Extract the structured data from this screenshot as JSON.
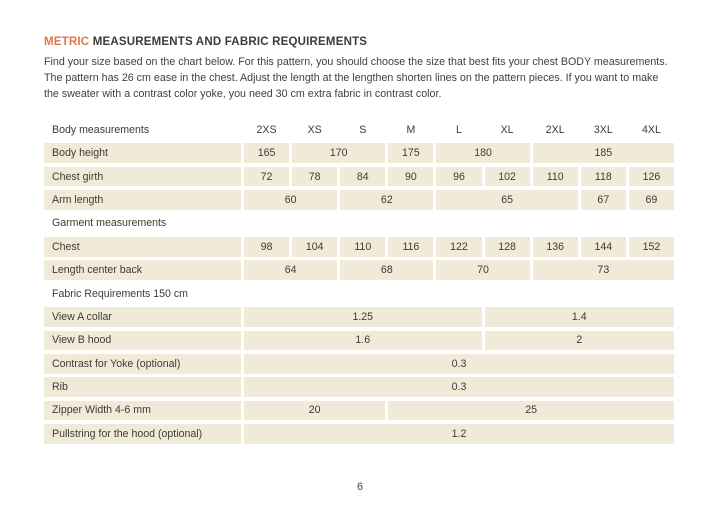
{
  "colors": {
    "accent_orange": "#e0764b",
    "cell_beige": "#f2ead8",
    "text_dark": "#3f3a36",
    "page_background": "#ffffff"
  },
  "header": {
    "title_highlight": "METRIC",
    "title_rest": "MEASUREMENTS AND FABRIC REQUIREMENTS",
    "intro": "Find your size based on the chart below. For this pattern, you should choose the size that best fits your chest BODY measurements. The pattern has 26 cm ease in the chest. Adjust the length at the lengthen shorten lines on the pattern pieces. If you want to make the sweater with a contrast color yoke, you need 30 cm extra fabric in contrast color."
  },
  "table": {
    "size_columns": [
      "2XS",
      "XS",
      "S",
      "M",
      "L",
      "XL",
      "2XL",
      "3XL",
      "4XL"
    ],
    "rows": [
      {
        "type": "header",
        "label": "Body measurements",
        "cells": [
          {
            "value": "2XS",
            "span": 1
          },
          {
            "value": "XS",
            "span": 1
          },
          {
            "value": "S",
            "span": 1
          },
          {
            "value": "M",
            "span": 1
          },
          {
            "value": "L",
            "span": 1
          },
          {
            "value": "XL",
            "span": 1
          },
          {
            "value": "2XL",
            "span": 1
          },
          {
            "value": "3XL",
            "span": 1
          },
          {
            "value": "4XL",
            "span": 1
          }
        ]
      },
      {
        "type": "data",
        "label": "Body height",
        "cells": [
          {
            "value": "165",
            "span": 1
          },
          {
            "value": "170",
            "span": 2
          },
          {
            "value": "175",
            "span": 1
          },
          {
            "value": "180",
            "span": 2
          },
          {
            "value": "185",
            "span": 3
          }
        ]
      },
      {
        "type": "data",
        "label": "Chest girth",
        "cells": [
          {
            "value": "72",
            "span": 1
          },
          {
            "value": "78",
            "span": 1
          },
          {
            "value": "84",
            "span": 1
          },
          {
            "value": "90",
            "span": 1
          },
          {
            "value": "96",
            "span": 1
          },
          {
            "value": "102",
            "span": 1
          },
          {
            "value": "110",
            "span": 1
          },
          {
            "value": "118",
            "span": 1
          },
          {
            "value": "126",
            "span": 1
          }
        ]
      },
      {
        "type": "data",
        "label": "Arm length",
        "cells": [
          {
            "value": "60",
            "span": 2
          },
          {
            "value": "62",
            "span": 2
          },
          {
            "value": "65",
            "span": 3
          },
          {
            "value": "67",
            "span": 1
          },
          {
            "value": "69",
            "span": 1
          }
        ]
      },
      {
        "type": "section",
        "label": "Garment measurements",
        "cells": []
      },
      {
        "type": "data",
        "label": "Chest",
        "cells": [
          {
            "value": "98",
            "span": 1
          },
          {
            "value": "104",
            "span": 1
          },
          {
            "value": "110",
            "span": 1
          },
          {
            "value": "116",
            "span": 1
          },
          {
            "value": "122",
            "span": 1
          },
          {
            "value": "128",
            "span": 1
          },
          {
            "value": "136",
            "span": 1
          },
          {
            "value": "144",
            "span": 1
          },
          {
            "value": "152",
            "span": 1
          }
        ]
      },
      {
        "type": "data",
        "label": "Length center back",
        "cells": [
          {
            "value": "64",
            "span": 2
          },
          {
            "value": "68",
            "span": 2
          },
          {
            "value": "70",
            "span": 2
          },
          {
            "value": "73",
            "span": 3
          }
        ]
      },
      {
        "type": "section",
        "label": "Fabric Requirements 150 cm",
        "cells": []
      },
      {
        "type": "data",
        "label": "View A collar",
        "cells": [
          {
            "value": "1.25",
            "span": 5
          },
          {
            "value": "1.4",
            "span": 4
          }
        ]
      },
      {
        "type": "data",
        "label": "View B hood",
        "cells": [
          {
            "value": "1.6",
            "span": 5
          },
          {
            "value": "2",
            "span": 4
          }
        ]
      },
      {
        "type": "data",
        "label": "Contrast for Yoke (optional)",
        "cells": [
          {
            "value": "0.3",
            "span": 9
          }
        ]
      },
      {
        "type": "data",
        "label": "Rib",
        "cells": [
          {
            "value": "0.3",
            "span": 9
          }
        ]
      },
      {
        "type": "data",
        "label": "Zipper Width 4-6 mm",
        "cells": [
          {
            "value": "20",
            "span": 3
          },
          {
            "value": "25",
            "span": 6
          }
        ]
      },
      {
        "type": "data",
        "label": "Pullstring for the hood (optional)",
        "cells": [
          {
            "value": "1.2",
            "span": 9
          }
        ]
      }
    ]
  },
  "footer": {
    "page_number": "6"
  }
}
